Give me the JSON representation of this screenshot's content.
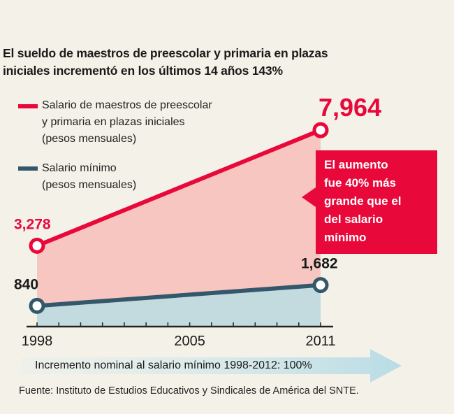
{
  "title_line1": "El sueldo de maestros de preescolar y primaria en plazas",
  "title_line2": "iniciales incrementó en los últimos 14 años 143%",
  "legend": [
    {
      "lines": [
        "Salario de maestros de preescolar",
        "y primaria en plazas iniciales",
        "(pesos mensuales)"
      ],
      "color": "#e8093a"
    },
    {
      "lines": [
        "Salario mínimo",
        "(pesos mensuales)"
      ],
      "color": "#34586b"
    }
  ],
  "callout": {
    "lines": [
      "El aumento",
      "fue 40% más",
      "grande que el",
      "del salario",
      "mínimo"
    ]
  },
  "note": "Incremento nominal al salario mínimo 1998-2012: 100%",
  "source": "Fuente: Instituto de Estudios Educativos y Sindicales de América del SNTE.",
  "chart_data": {
    "type": "area",
    "title": "El sueldo de maestros de preescolar y primaria en plazas iniciales incrementó en los últimos 14 años 143%",
    "x": [
      1998,
      2011
    ],
    "xticks": [
      "1998",
      "2005",
      "2011"
    ],
    "series": [
      {
        "name": "Salario de maestros de preescolar y primaria en plazas iniciales (pesos mensuales)",
        "values": [
          3278,
          7964
        ],
        "labels": [
          "3,278",
          "7,964"
        ],
        "color": "#e8093a",
        "fill": "#f8c6c0"
      },
      {
        "name": "Salario mínimo (pesos mensuales)",
        "values": [
          840,
          1682
        ],
        "labels": [
          "840",
          "1,682"
        ],
        "color": "#34586b",
        "fill": "#c3dbdf"
      }
    ],
    "ylim": [
      0,
      8000
    ],
    "grid": false
  }
}
